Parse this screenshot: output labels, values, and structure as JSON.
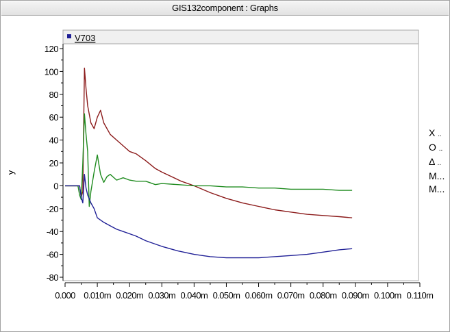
{
  "window": {
    "title": "GIS132component : Graphs"
  },
  "chart_data": {
    "type": "line",
    "title": "",
    "xlabel": "",
    "ylabel": "y",
    "xlim": [
      0,
      0.11
    ],
    "ylim": [
      -80,
      120
    ],
    "x_ticks": [
      {
        "value": 0.0,
        "label": "0.000"
      },
      {
        "value": 0.01,
        "label": "0.010m"
      },
      {
        "value": 0.02,
        "label": "0.020m"
      },
      {
        "value": 0.03,
        "label": "0.030m"
      },
      {
        "value": 0.04,
        "label": "0.040m"
      },
      {
        "value": 0.05,
        "label": "0.050m"
      },
      {
        "value": 0.06,
        "label": "0.060m"
      },
      {
        "value": 0.07,
        "label": "0.070m"
      },
      {
        "value": 0.08,
        "label": "0.080m"
      },
      {
        "value": 0.09,
        "label": "0.090m"
      },
      {
        "value": 0.1,
        "label": "0.100m"
      },
      {
        "value": 0.11,
        "label": "0.110m"
      }
    ],
    "y_ticks": [
      {
        "value": 120,
        "label": "120"
      },
      {
        "value": 100,
        "label": "100"
      },
      {
        "value": 80,
        "label": "80"
      },
      {
        "value": 60,
        "label": "60"
      },
      {
        "value": 40,
        "label": "40"
      },
      {
        "value": 20,
        "label": "20"
      },
      {
        "value": 0,
        "label": "0"
      },
      {
        "value": -20,
        "label": "-20"
      },
      {
        "value": -40,
        "label": "-40"
      },
      {
        "value": -60,
        "label": "-60"
      },
      {
        "value": -80,
        "label": "-80"
      }
    ],
    "grid": false,
    "legend": {
      "placement": "top-left",
      "entries": [
        {
          "label": "V703",
          "color": "#1f1f96"
        }
      ]
    },
    "side_legend": [
      {
        "symbol": "X",
        "label": ".."
      },
      {
        "symbol": "O",
        "label": ".."
      },
      {
        "symbol": "Δ",
        "label": ".."
      },
      {
        "symbol": "",
        "label": "M..."
      },
      {
        "symbol": "",
        "label": "M..."
      }
    ],
    "series": [
      {
        "color": "#8b1a1a",
        "x": [
          0,
          0.0045,
          0.005,
          0.0055,
          0.006,
          0.0065,
          0.007,
          0.008,
          0.009,
          0.01,
          0.011,
          0.012,
          0.014,
          0.016,
          0.018,
          0.02,
          0.022,
          0.025,
          0.028,
          0.03,
          0.033,
          0.036,
          0.04,
          0.045,
          0.05,
          0.055,
          0.06,
          0.065,
          0.07,
          0.075,
          0.08,
          0.085,
          0.089
        ],
        "y": [
          0,
          0,
          -10,
          -5,
          103,
          85,
          70,
          55,
          50,
          60,
          66,
          55,
          45,
          40,
          35,
          30,
          28,
          22,
          15,
          12,
          8,
          4,
          0,
          -6,
          -11,
          -15,
          -18,
          -21,
          -23,
          -25,
          -26,
          -27,
          -28
        ]
      },
      {
        "color": "#1f8b1f",
        "x": [
          0,
          0.004,
          0.0045,
          0.005,
          0.0055,
          0.006,
          0.0065,
          0.007,
          0.0075,
          0.008,
          0.009,
          0.01,
          0.011,
          0.012,
          0.013,
          0.014,
          0.016,
          0.018,
          0.02,
          0.022,
          0.025,
          0.028,
          0.03,
          0.035,
          0.04,
          0.045,
          0.05,
          0.055,
          0.06,
          0.065,
          0.07,
          0.075,
          0.08,
          0.085,
          0.089
        ],
        "y": [
          0,
          0,
          -8,
          -12,
          20,
          63,
          45,
          30,
          -18,
          -5,
          12,
          27,
          10,
          3,
          8,
          10,
          5,
          7,
          5,
          4,
          4,
          1,
          2,
          1,
          0,
          0,
          -1,
          -1,
          -2,
          -2,
          -3,
          -3,
          -3,
          -4,
          -4
        ]
      },
      {
        "color": "#1f1f96",
        "x": [
          0,
          0.0045,
          0.005,
          0.0055,
          0.006,
          0.0065,
          0.007,
          0.008,
          0.009,
          0.01,
          0.012,
          0.014,
          0.016,
          0.018,
          0.02,
          0.022,
          0.025,
          0.028,
          0.03,
          0.035,
          0.04,
          0.045,
          0.05,
          0.055,
          0.06,
          0.065,
          0.07,
          0.075,
          0.08,
          0.085,
          0.089
        ],
        "y": [
          0,
          0,
          -10,
          -15,
          10,
          -2,
          -8,
          -15,
          -20,
          -28,
          -32,
          -35,
          -38,
          -40,
          -42,
          -44,
          -48,
          -51,
          -53,
          -57,
          -60,
          -62,
          -63,
          -63,
          -63,
          -62,
          -61,
          -60,
          -58,
          -56,
          -55
        ]
      }
    ]
  }
}
